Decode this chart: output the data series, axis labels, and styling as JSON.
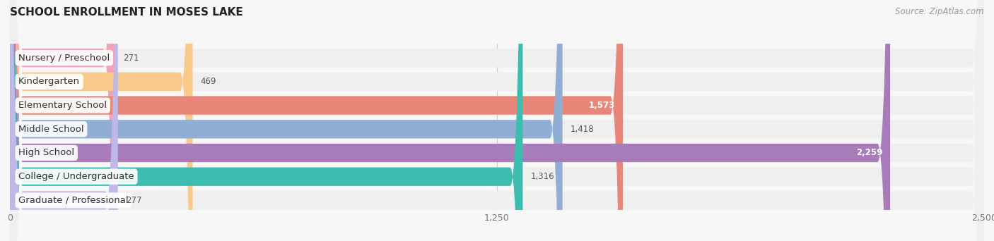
{
  "title": "SCHOOL ENROLLMENT IN MOSES LAKE",
  "source": "Source: ZipAtlas.com",
  "categories": [
    "Nursery / Preschool",
    "Kindergarten",
    "Elementary School",
    "Middle School",
    "High School",
    "College / Undergraduate",
    "Graduate / Professional"
  ],
  "values": [
    271,
    469,
    1573,
    1418,
    2259,
    1316,
    277
  ],
  "bar_colors": [
    "#f4a0b5",
    "#f9c98a",
    "#e8867a",
    "#90aed4",
    "#a87cb8",
    "#3dbcb0",
    "#c0b8e8"
  ],
  "bar_bg_color": "#e8e8e8",
  "row_bg_color": "#efefef",
  "xlim": [
    0,
    2500
  ],
  "xticks": [
    0,
    1250,
    2500
  ],
  "background_color": "#f7f7f7",
  "title_fontsize": 11,
  "label_fontsize": 9.5,
  "value_fontsize": 8.5,
  "source_fontsize": 8.5,
  "value_threshold": 1500
}
